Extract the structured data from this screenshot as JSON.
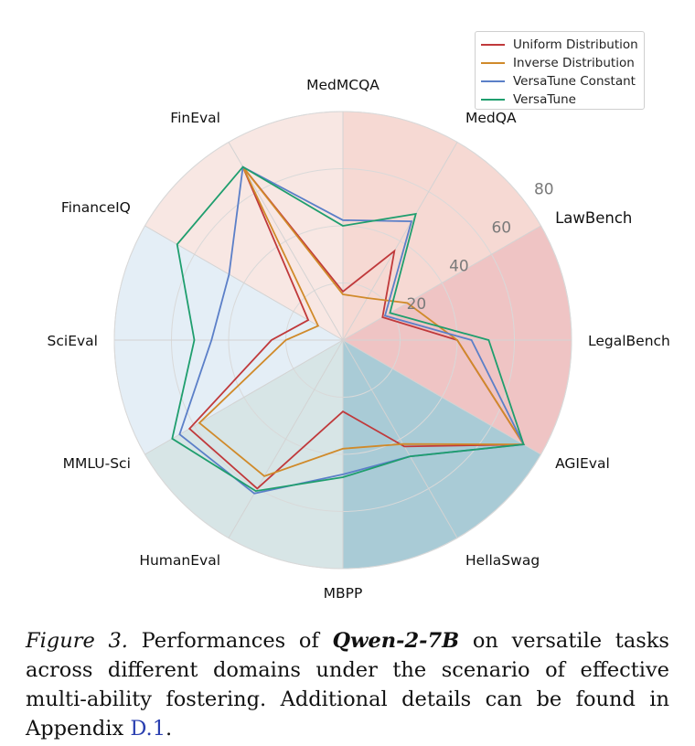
{
  "chart_data": {
    "type": "radar",
    "categories": [
      "MedMCQA",
      "MedQA",
      "LawBench",
      "LegalBench",
      "AGIEval",
      "HellaSwag",
      "MBPP",
      "HumanEval",
      "MMLU-Sci",
      "SciEval",
      "FinanceIQ",
      "FinEval"
    ],
    "domain_colors": [
      "#f6d9d3",
      "#f6d9d3",
      "#efc4c4",
      "#efc4c4",
      "#a9cbd6",
      "#a9cbd6",
      "#d7e5e6",
      "#d7e5e6",
      "#e4eef6",
      "#e4eef6",
      "#f8e7e3",
      "#f8e7e3"
    ],
    "radial_ticks": [
      20,
      40,
      60,
      80
    ],
    "rmax": 80,
    "grid": true,
    "legend_position": "top-right",
    "series": [
      {
        "name": "Uniform Distribution",
        "color": "#c0393b",
        "values": [
          17,
          36,
          16,
          40,
          73,
          43,
          25,
          60,
          62,
          25,
          14,
          70
        ]
      },
      {
        "name": "Inverse Distribution",
        "color": "#d08a2a",
        "values": [
          16,
          17,
          26,
          40,
          73,
          42,
          38,
          55,
          58,
          20,
          10,
          70
        ]
      },
      {
        "name": "VersaTune Constant",
        "color": "#5b7fc8",
        "values": [
          42,
          48,
          17,
          45,
          73,
          47,
          47,
          62,
          66,
          46,
          46,
          70
        ]
      },
      {
        "name": "VersaTune",
        "color": "#1f9e6e",
        "values": [
          40,
          51,
          19,
          51,
          73,
          47,
          48,
          61,
          69,
          52,
          67,
          70
        ]
      }
    ]
  },
  "caption": {
    "label": "Figure 3.",
    "text_before": " Performances of ",
    "model": "Qwen-2-7B",
    "text_after": " on versatile tasks across different domains under the scenario of effective multi-ability fostering. Additional details can be found in Appendix ",
    "link": "D.1",
    "end": "."
  }
}
